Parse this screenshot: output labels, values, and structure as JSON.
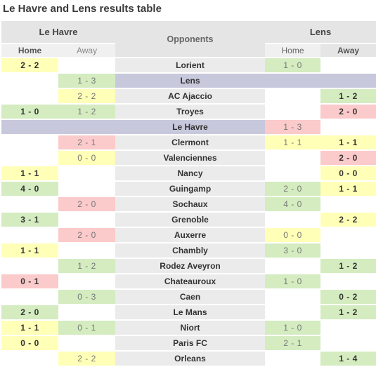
{
  "title": "Le Havre and Lens results table",
  "teams": {
    "left": "Le Havre",
    "right": "Lens"
  },
  "opponents_header": "Opponents",
  "sub_headers": {
    "home": "Home",
    "away": "Away"
  },
  "rows": [
    {
      "opponent": "Lorient",
      "special": false,
      "cells": [
        {
          "t": "2 - 2",
          "c": "y",
          "w": "b"
        },
        {
          "t": "",
          "c": "e",
          "w": "n"
        },
        {
          "t": "1 - 0",
          "c": "g",
          "w": "n"
        },
        {
          "t": "",
          "c": "e",
          "w": "n"
        }
      ]
    },
    {
      "opponent": "Lens",
      "special": true,
      "cells": [
        {
          "t": "",
          "c": "e",
          "w": "n"
        },
        {
          "t": "1 - 3",
          "c": "g",
          "w": "n"
        },
        {
          "t": "",
          "c": "band",
          "w": "n"
        },
        {
          "t": "",
          "c": "band",
          "w": "n"
        }
      ]
    },
    {
      "opponent": "AC Ajaccio",
      "special": false,
      "cells": [
        {
          "t": "",
          "c": "e",
          "w": "n"
        },
        {
          "t": "2 - 2",
          "c": "y",
          "w": "n"
        },
        {
          "t": "",
          "c": "e",
          "w": "n"
        },
        {
          "t": "1 - 2",
          "c": "g",
          "w": "b"
        }
      ]
    },
    {
      "opponent": "Troyes",
      "special": false,
      "cells": [
        {
          "t": "1 - 0",
          "c": "g",
          "w": "b"
        },
        {
          "t": "1 - 2",
          "c": "g",
          "w": "n"
        },
        {
          "t": "",
          "c": "e",
          "w": "n"
        },
        {
          "t": "2 - 0",
          "c": "r",
          "w": "b"
        }
      ]
    },
    {
      "opponent": "Le Havre",
      "special": true,
      "cells": [
        {
          "t": "",
          "c": "band",
          "w": "n"
        },
        {
          "t": "",
          "c": "band",
          "w": "n"
        },
        {
          "t": "1 - 3",
          "c": "r",
          "w": "n"
        },
        {
          "t": "",
          "c": "e",
          "w": "n"
        }
      ]
    },
    {
      "opponent": "Clermont",
      "special": false,
      "cells": [
        {
          "t": "",
          "c": "e",
          "w": "n"
        },
        {
          "t": "2 - 1",
          "c": "r",
          "w": "n"
        },
        {
          "t": "1 - 1",
          "c": "y",
          "w": "n"
        },
        {
          "t": "1 - 1",
          "c": "y",
          "w": "b"
        }
      ]
    },
    {
      "opponent": "Valenciennes",
      "special": false,
      "cells": [
        {
          "t": "",
          "c": "e",
          "w": "n"
        },
        {
          "t": "0 - 0",
          "c": "y",
          "w": "n"
        },
        {
          "t": "",
          "c": "e",
          "w": "n"
        },
        {
          "t": "2 - 0",
          "c": "r",
          "w": "b"
        }
      ]
    },
    {
      "opponent": "Nancy",
      "special": false,
      "cells": [
        {
          "t": "1 - 1",
          "c": "y",
          "w": "b"
        },
        {
          "t": "",
          "c": "e",
          "w": "n"
        },
        {
          "t": "",
          "c": "e",
          "w": "n"
        },
        {
          "t": "0 - 0",
          "c": "y",
          "w": "b"
        }
      ]
    },
    {
      "opponent": "Guingamp",
      "special": false,
      "cells": [
        {
          "t": "4 - 0",
          "c": "g",
          "w": "b"
        },
        {
          "t": "",
          "c": "e",
          "w": "n"
        },
        {
          "t": "2 - 0",
          "c": "g",
          "w": "n"
        },
        {
          "t": "1 - 1",
          "c": "y",
          "w": "b"
        }
      ]
    },
    {
      "opponent": "Sochaux",
      "special": false,
      "cells": [
        {
          "t": "",
          "c": "e",
          "w": "n"
        },
        {
          "t": "2 - 0",
          "c": "r",
          "w": "n"
        },
        {
          "t": "4 - 0",
          "c": "g",
          "w": "n"
        },
        {
          "t": "",
          "c": "e",
          "w": "n"
        }
      ]
    },
    {
      "opponent": "Grenoble",
      "special": false,
      "cells": [
        {
          "t": "3 - 1",
          "c": "g",
          "w": "b"
        },
        {
          "t": "",
          "c": "e",
          "w": "n"
        },
        {
          "t": "",
          "c": "e",
          "w": "n"
        },
        {
          "t": "2 - 2",
          "c": "y",
          "w": "b"
        }
      ]
    },
    {
      "opponent": "Auxerre",
      "special": false,
      "cells": [
        {
          "t": "",
          "c": "e",
          "w": "n"
        },
        {
          "t": "2 - 0",
          "c": "r",
          "w": "n"
        },
        {
          "t": "0 - 0",
          "c": "y",
          "w": "n"
        },
        {
          "t": "",
          "c": "e",
          "w": "n"
        }
      ]
    },
    {
      "opponent": "Chambly",
      "special": false,
      "cells": [
        {
          "t": "1 - 1",
          "c": "y",
          "w": "b"
        },
        {
          "t": "",
          "c": "e",
          "w": "n"
        },
        {
          "t": "3 - 0",
          "c": "g",
          "w": "n"
        },
        {
          "t": "",
          "c": "e",
          "w": "n"
        }
      ]
    },
    {
      "opponent": "Rodez Aveyron",
      "special": false,
      "cells": [
        {
          "t": "",
          "c": "e",
          "w": "n"
        },
        {
          "t": "1 - 2",
          "c": "g",
          "w": "n"
        },
        {
          "t": "",
          "c": "e",
          "w": "n"
        },
        {
          "t": "1 - 2",
          "c": "g",
          "w": "b"
        }
      ]
    },
    {
      "opponent": "Chateauroux",
      "special": false,
      "cells": [
        {
          "t": "0 - 1",
          "c": "r",
          "w": "b"
        },
        {
          "t": "",
          "c": "e",
          "w": "n"
        },
        {
          "t": "1 - 0",
          "c": "g",
          "w": "n"
        },
        {
          "t": "",
          "c": "e",
          "w": "n"
        }
      ]
    },
    {
      "opponent": "Caen",
      "special": false,
      "cells": [
        {
          "t": "",
          "c": "e",
          "w": "n"
        },
        {
          "t": "0 - 3",
          "c": "g",
          "w": "n"
        },
        {
          "t": "",
          "c": "e",
          "w": "n"
        },
        {
          "t": "0 - 2",
          "c": "g",
          "w": "b"
        }
      ]
    },
    {
      "opponent": "Le Mans",
      "special": false,
      "cells": [
        {
          "t": "2 - 0",
          "c": "g",
          "w": "b"
        },
        {
          "t": "",
          "c": "e",
          "w": "n"
        },
        {
          "t": "",
          "c": "e",
          "w": "n"
        },
        {
          "t": "1 - 2",
          "c": "g",
          "w": "b"
        }
      ]
    },
    {
      "opponent": "Niort",
      "special": false,
      "cells": [
        {
          "t": "1 - 1",
          "c": "y",
          "w": "b"
        },
        {
          "t": "0 - 1",
          "c": "g",
          "w": "n"
        },
        {
          "t": "1 - 0",
          "c": "g",
          "w": "n"
        },
        {
          "t": "",
          "c": "e",
          "w": "n"
        }
      ]
    },
    {
      "opponent": "Paris FC",
      "special": false,
      "cells": [
        {
          "t": "0 - 0",
          "c": "y",
          "w": "b"
        },
        {
          "t": "",
          "c": "e",
          "w": "n"
        },
        {
          "t": "2 - 1",
          "c": "g",
          "w": "n"
        },
        {
          "t": "",
          "c": "e",
          "w": "n"
        }
      ]
    },
    {
      "opponent": "Orleans",
      "special": false,
      "cells": [
        {
          "t": "",
          "c": "e",
          "w": "n"
        },
        {
          "t": "2 - 2",
          "c": "y",
          "w": "n"
        },
        {
          "t": "",
          "c": "e",
          "w": "n"
        },
        {
          "t": "1 - 4",
          "c": "g",
          "w": "b"
        }
      ]
    }
  ]
}
